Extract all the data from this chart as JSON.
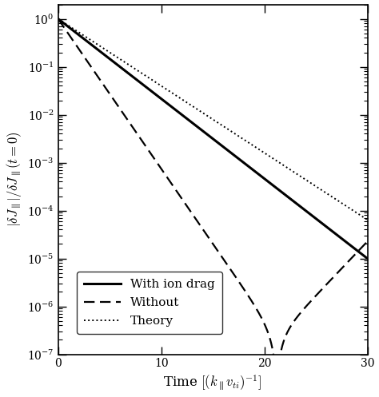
{
  "title": "",
  "xlabel": "Time $[(k_{\\parallel}v_{ti})^{-1}]$",
  "ylabel": "$|\\delta J_{\\parallel}| / \\delta J_{\\parallel}(t=0)$",
  "xlim": [
    0,
    30
  ],
  "ylim": [
    1e-07,
    2.0
  ],
  "xticks": [
    0,
    10,
    20,
    30
  ],
  "legend_labels": [
    "With ion drag",
    "Without",
    "Theory"
  ],
  "background_color": "#ffffff",
  "line_color": "#000000",
  "gamma_solid": 0.384,
  "gamma_dotted": 0.322,
  "gamma_dash_fast": 0.72,
  "t_min": 21.2,
  "gamma_dash_rise": 0.52
}
